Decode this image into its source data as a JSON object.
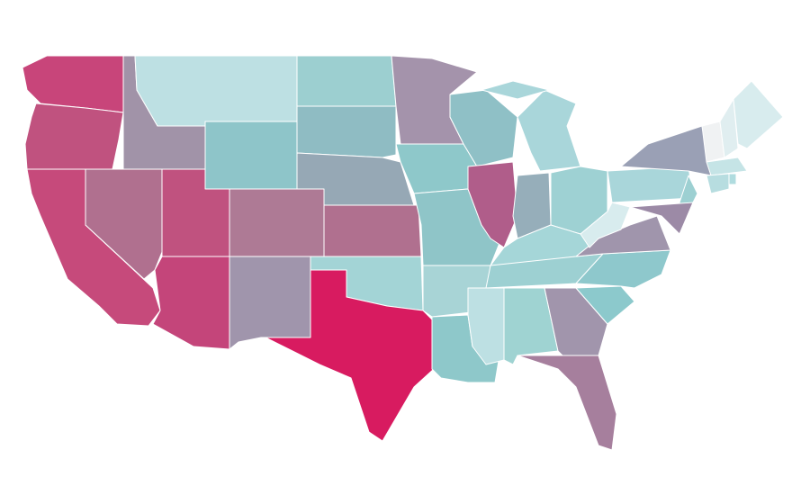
{
  "map": {
    "regions": [
      {
        "color": "#c8457a"
      },
      {
        "color": "#c0527f"
      },
      {
        "color": "#c64a7b"
      },
      {
        "color": "#b0708f"
      },
      {
        "color": "#a193a8"
      },
      {
        "color": "#bde0e3"
      },
      {
        "color": "#8ec5c9"
      },
      {
        "color": "#c0527f"
      },
      {
        "color": "#c4457a"
      },
      {
        "color": "#ae7a95"
      },
      {
        "color": "#a095ac"
      },
      {
        "color": "#9ccfd0"
      },
      {
        "color": "#8fbcc3"
      },
      {
        "color": "#96a8b5"
      },
      {
        "color": "#b0708f"
      },
      {
        "color": "#a3d4d6"
      },
      {
        "color": "#d81b60"
      },
      {
        "color": "#a493ab"
      },
      {
        "color": "#8ec8ca"
      },
      {
        "color": "#8fc5c8"
      },
      {
        "color": "#a8d4d6"
      },
      {
        "color": "#8ec8ca"
      },
      {
        "color": "#8fc0c6"
      },
      {
        "color": "#b05d8a"
      },
      {
        "color": "#a9d6da"
      },
      {
        "color": "#96aeba"
      },
      {
        "color": "#9ed1d3"
      },
      {
        "color": "#a5d6d8"
      },
      {
        "color": "#9dd0d2"
      },
      {
        "color": "#bde0e3"
      },
      {
        "color": "#9fd3d2"
      },
      {
        "color": "#a195ac"
      },
      {
        "color": "#a67f9d"
      },
      {
        "color": "#8cc9cc"
      },
      {
        "color": "#8ec8cc"
      },
      {
        "color": "#a095ac"
      },
      {
        "color": "#d8ecee"
      },
      {
        "color": "#a9d6da"
      },
      {
        "color": "#9aa0b5"
      },
      {
        "color": "#9dd0d2"
      },
      {
        "color": "#9c8aa6"
      },
      {
        "color": "#f0f2f3"
      },
      {
        "color": "#e0eef0"
      },
      {
        "color": "#d8ecee"
      },
      {
        "color": "#c5e4e6"
      },
      {
        "color": "#b7dde0"
      },
      {
        "color": "#b0dcdf"
      },
      {
        "color": "#a9d6da"
      }
    ]
  }
}
